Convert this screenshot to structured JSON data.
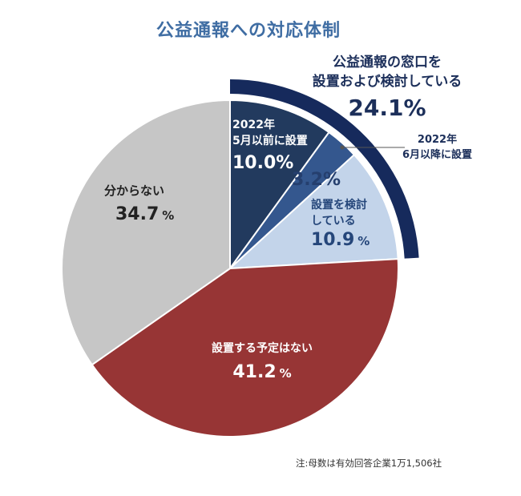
{
  "title": "公益通報への対応体制",
  "callout": {
    "line1": "公益通報の窓口を",
    "line2": "設置および検討している",
    "value": "24.1%"
  },
  "chart_data": {
    "type": "pie",
    "title": "公益通報への対応体制",
    "unit": "%",
    "slices": [
      {
        "label": "2022年5月以前に設置",
        "value": 10.0,
        "color": "#223a5e"
      },
      {
        "label": "2022年6月以降に設置",
        "value": 3.2,
        "color": "#34578e"
      },
      {
        "label": "設置を検討している",
        "value": 10.9,
        "color": "#c3d4ea"
      },
      {
        "label": "設置する予定はない",
        "value": 41.2,
        "color": "#973535"
      },
      {
        "label": "分からない",
        "value": 34.7,
        "color": "#c6c6c6"
      }
    ],
    "group": {
      "label": "公益通報の窓口を設置および検討している",
      "value": 24.1,
      "color": "#162a5c"
    }
  },
  "labels": {
    "s1_line1": "2022年",
    "s1_line2": "5月以前に設置",
    "s1_value": "10.0%",
    "s2_line1": "2022年",
    "s2_line2": "6月以降に設置",
    "s2_value": "3.2%",
    "s3_line1": "設置を検討",
    "s3_line2": "している",
    "s3_value": "10.9",
    "s4_line1": "設置する予定はない",
    "s4_value": "41.2",
    "s5_line1": "分からない",
    "s5_value": "34.7",
    "percent_sign": "%"
  },
  "note": "注:母数は有効回答企業1万1,506社"
}
